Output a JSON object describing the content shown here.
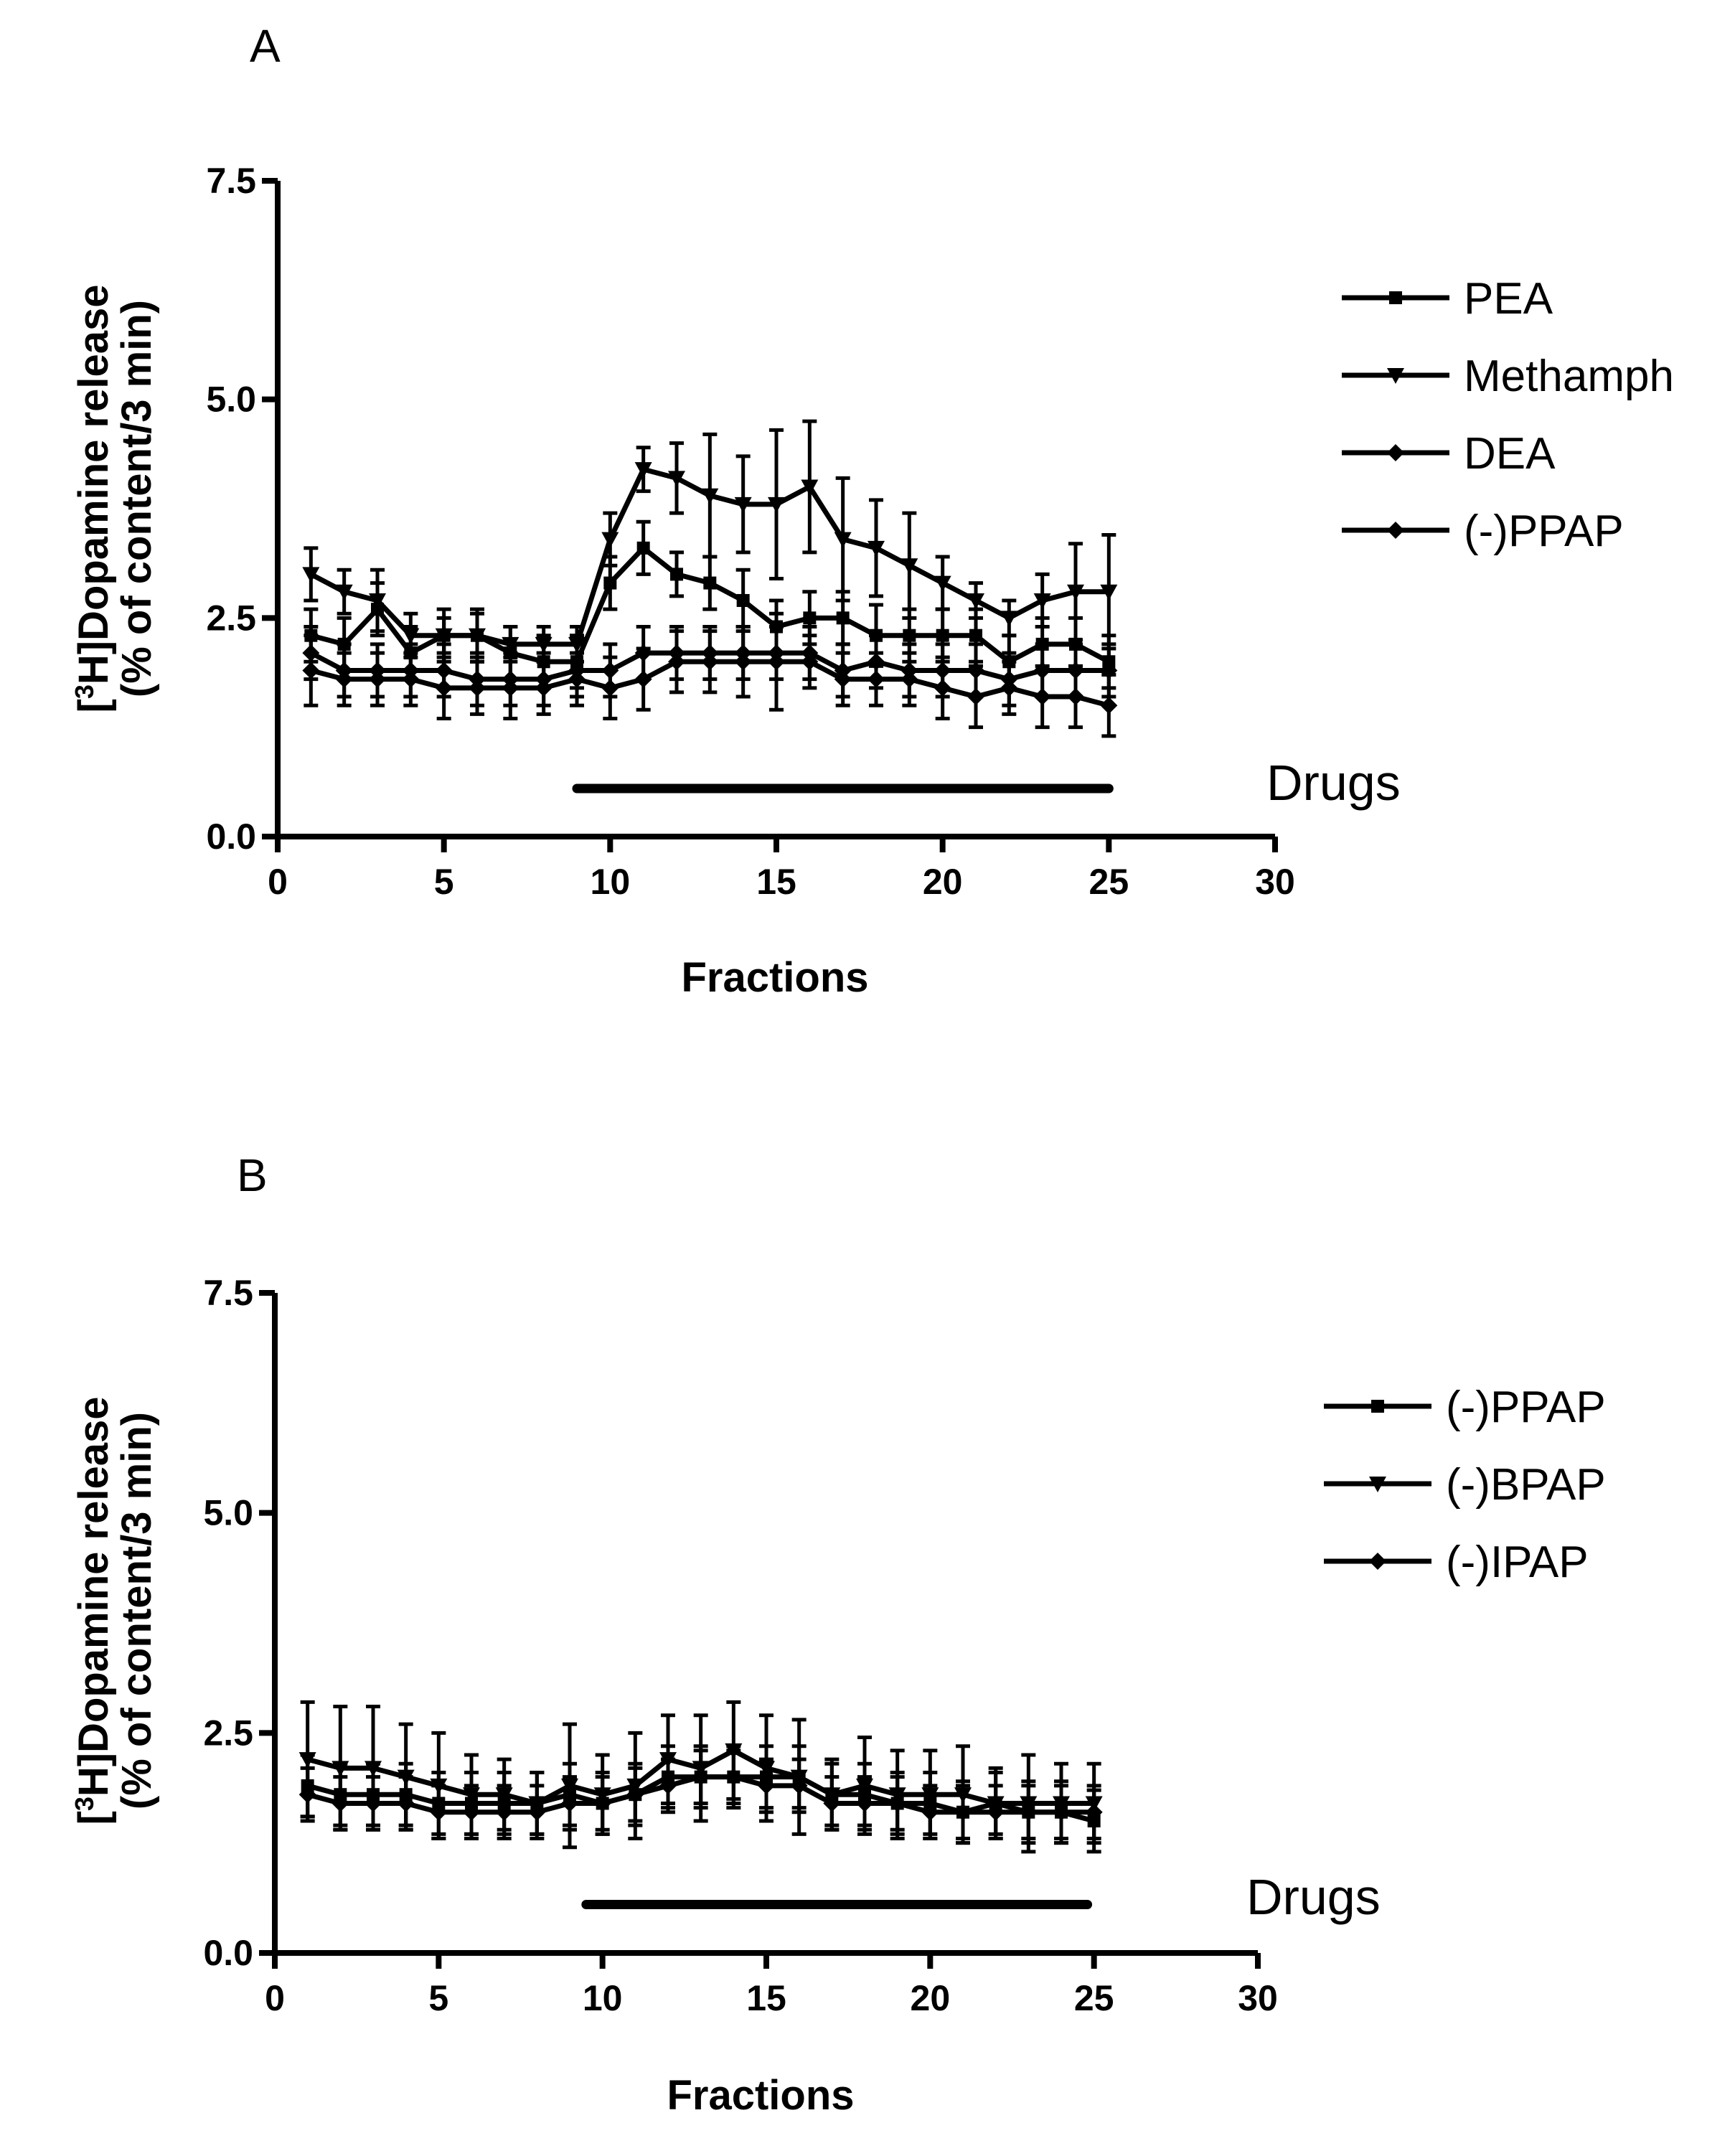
{
  "chart_data": [
    {
      "type": "line",
      "panel": "A",
      "ylabel_line1": "[3H]Dopamine release",
      "ylabel_superscript": "3",
      "ylabel_line1_after": "H]Dopamine release",
      "ylabel_line1_before": "[",
      "ylabel_line2": "(% of content/3 min)",
      "xlabel": "Fractions",
      "xlim": [
        0,
        30
      ],
      "ylim": [
        0,
        7.5
      ],
      "xticks": [
        0,
        5,
        10,
        15,
        20,
        25,
        30
      ],
      "yticks": [
        0.0,
        2.5,
        5.0,
        7.5
      ],
      "ytick_labels": [
        "0.0",
        "2.5",
        "5.0",
        "7.5"
      ],
      "xtick_labels": [
        "0",
        "5",
        "10",
        "15",
        "20",
        "25",
        "30"
      ],
      "grid": false,
      "legend_position": "right",
      "drug_bar": {
        "label": "Drugs",
        "x_start": 9,
        "x_end": 25,
        "y": 0.55
      },
      "x": [
        1,
        2,
        3,
        4,
        5,
        6,
        7,
        8,
        9,
        10,
        11,
        12,
        13,
        14,
        15,
        16,
        17,
        18,
        19,
        20,
        21,
        22,
        23,
        24,
        25
      ],
      "series": [
        {
          "name": "PEA",
          "marker": "square",
          "values": [
            2.3,
            2.2,
            2.6,
            2.1,
            2.3,
            2.3,
            2.1,
            2.0,
            2.0,
            2.9,
            3.3,
            3.0,
            2.9,
            2.7,
            2.4,
            2.5,
            2.5,
            2.3,
            2.3,
            2.3,
            2.3,
            2.0,
            2.2,
            2.2,
            2.0
          ],
          "errors": [
            0.3,
            0.3,
            0.3,
            0.3,
            0.3,
            0.25,
            0.3,
            0.3,
            0.3,
            0.3,
            0.3,
            0.25,
            0.3,
            0.35,
            0.3,
            0.3,
            0.3,
            0.35,
            0.3,
            0.3,
            0.3,
            0.3,
            0.3,
            0.3,
            0.3
          ]
        },
        {
          "name": "Methamph",
          "marker": "triangle-down",
          "values": [
            3.0,
            2.8,
            2.7,
            2.3,
            2.3,
            2.3,
            2.2,
            2.2,
            2.2,
            3.4,
            4.2,
            4.1,
            3.9,
            3.8,
            3.8,
            4.0,
            3.4,
            3.3,
            3.1,
            2.9,
            2.7,
            2.5,
            2.7,
            2.8,
            2.8
          ],
          "errors": [
            0.3,
            0.25,
            0.35,
            0.25,
            0.2,
            0.3,
            0.2,
            0.2,
            0.2,
            0.3,
            0.25,
            0.4,
            0.7,
            0.55,
            0.85,
            0.75,
            0.7,
            0.55,
            0.6,
            0.3,
            0.2,
            0.2,
            0.3,
            0.55,
            0.65
          ]
        },
        {
          "name": "DEA",
          "marker": "diamond",
          "values": [
            2.1,
            1.9,
            1.9,
            1.9,
            1.9,
            1.8,
            1.8,
            1.8,
            1.9,
            1.9,
            2.1,
            2.1,
            2.1,
            2.1,
            2.1,
            2.1,
            1.9,
            2.0,
            1.9,
            1.9,
            1.9,
            1.8,
            1.9,
            1.9,
            1.9
          ],
          "errors": [
            0.3,
            0.3,
            0.3,
            0.3,
            0.3,
            0.3,
            0.3,
            0.3,
            0.3,
            0.3,
            0.3,
            0.3,
            0.3,
            0.3,
            0.3,
            0.3,
            0.3,
            0.3,
            0.3,
            0.3,
            0.3,
            0.3,
            0.3,
            0.3,
            0.3
          ]
        },
        {
          "name": "(-)PPAP",
          "marker": "diamond",
          "values": [
            1.9,
            1.8,
            1.8,
            1.8,
            1.7,
            1.7,
            1.7,
            1.7,
            1.8,
            1.7,
            1.8,
            2.0,
            2.0,
            2.0,
            2.0,
            2.0,
            1.8,
            1.8,
            1.8,
            1.7,
            1.6,
            1.7,
            1.6,
            1.6,
            1.5
          ],
          "errors": [
            0.4,
            0.3,
            0.3,
            0.3,
            0.35,
            0.3,
            0.35,
            0.3,
            0.3,
            0.35,
            0.35,
            0.35,
            0.35,
            0.4,
            0.55,
            0.3,
            0.3,
            0.3,
            0.3,
            0.35,
            0.35,
            0.3,
            0.35,
            0.35,
            0.35
          ]
        }
      ]
    },
    {
      "type": "line",
      "panel": "B",
      "ylabel_line1": "[3H]Dopamine release",
      "ylabel_superscript": "3",
      "ylabel_line1_after": "H]Dopamine release",
      "ylabel_line1_before": "[",
      "ylabel_line2": "(% of content/3 min)",
      "xlabel": "Fractions",
      "xlim": [
        0,
        30
      ],
      "ylim": [
        0,
        7.5
      ],
      "xticks": [
        0,
        5,
        10,
        15,
        20,
        25,
        30
      ],
      "yticks": [
        0.0,
        2.5,
        5.0,
        7.5
      ],
      "ytick_labels": [
        "0.0",
        "2.5",
        "5.0",
        "7.5"
      ],
      "xtick_labels": [
        "0",
        "5",
        "10",
        "15",
        "20",
        "25",
        "30"
      ],
      "grid": false,
      "legend_position": "right",
      "drug_bar": {
        "label": "Drugs",
        "x_start": 9.5,
        "x_end": 24.8,
        "y": 0.55
      },
      "x": [
        1,
        2,
        3,
        4,
        5,
        6,
        7,
        8,
        9,
        10,
        11,
        12,
        13,
        14,
        15,
        16,
        17,
        18,
        19,
        20,
        21,
        22,
        23,
        24,
        25
      ],
      "series": [
        {
          "name": "(-)PPAP",
          "marker": "square",
          "values": [
            1.9,
            1.8,
            1.8,
            1.8,
            1.7,
            1.7,
            1.7,
            1.7,
            1.8,
            1.7,
            1.8,
            2.0,
            2.0,
            2.0,
            2.0,
            2.0,
            1.8,
            1.8,
            1.7,
            1.7,
            1.6,
            1.7,
            1.6,
            1.6,
            1.5
          ],
          "errors": [
            0.35,
            0.35,
            0.35,
            0.35,
            0.35,
            0.35,
            0.35,
            0.35,
            0.35,
            0.35,
            0.35,
            0.35,
            0.35,
            0.35,
            0.35,
            0.35,
            0.35,
            0.35,
            0.35,
            0.35,
            0.35,
            0.35,
            0.35,
            0.35,
            0.35
          ]
        },
        {
          "name": "(-)BPAP",
          "marker": "triangle-down",
          "values": [
            2.2,
            2.1,
            2.1,
            2.0,
            1.9,
            1.8,
            1.8,
            1.7,
            1.9,
            1.8,
            1.9,
            2.2,
            2.1,
            2.3,
            2.1,
            2.0,
            1.8,
            1.9,
            1.8,
            1.8,
            1.8,
            1.7,
            1.7,
            1.7,
            1.7
          ],
          "errors": [
            0.65,
            0.7,
            0.7,
            0.6,
            0.6,
            0.45,
            0.4,
            0.35,
            0.7,
            0.45,
            0.6,
            0.5,
            0.6,
            0.55,
            0.6,
            0.65,
            0.4,
            0.55,
            0.5,
            0.5,
            0.55,
            0.4,
            0.55,
            0.45,
            0.45
          ]
        },
        {
          "name": "(-)IPAP",
          "marker": "diamond",
          "values": [
            1.8,
            1.7,
            1.7,
            1.7,
            1.6,
            1.6,
            1.6,
            1.6,
            1.7,
            1.7,
            1.8,
            1.9,
            2.0,
            2.0,
            1.9,
            1.9,
            1.7,
            1.7,
            1.7,
            1.6,
            1.6,
            1.6,
            1.6,
            1.6,
            1.6
          ],
          "errors": [
            0.3,
            0.3,
            0.3,
            0.3,
            0.3,
            0.3,
            0.3,
            0.3,
            0.3,
            0.3,
            0.3,
            0.3,
            0.3,
            0.3,
            0.3,
            0.3,
            0.3,
            0.3,
            0.3,
            0.3,
            0.3,
            0.3,
            0.3,
            0.3,
            0.3
          ]
        }
      ]
    }
  ]
}
